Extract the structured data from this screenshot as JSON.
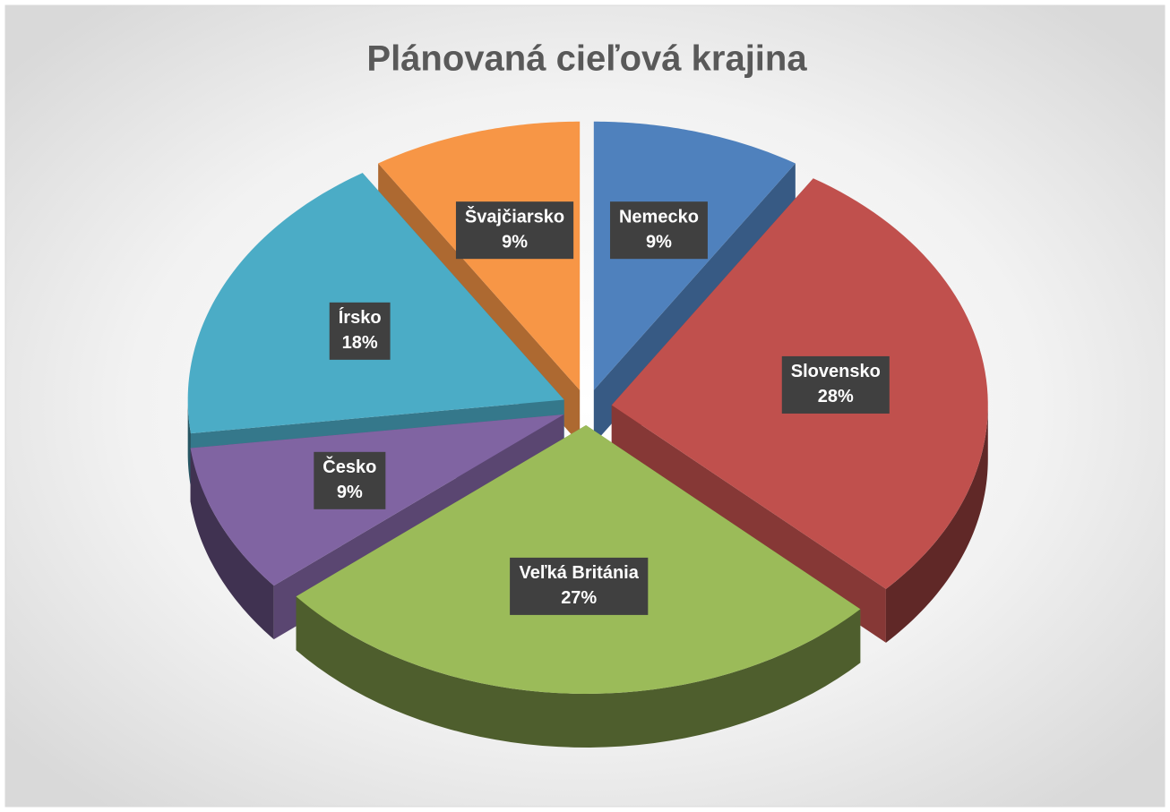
{
  "chart_data": {
    "type": "pie3d",
    "title": "Plánovaná cieľová krajina",
    "categories": [
      "Nemecko",
      "Slovensko",
      "Veľká Británia",
      "Česko",
      "Írsko",
      "Švajčiarsko"
    ],
    "values": [
      9,
      28,
      27,
      9,
      18,
      9
    ],
    "value_labels": [
      "9%",
      "28%",
      "27%",
      "9%",
      "18%",
      "9%"
    ],
    "colors": [
      "#4f81bd",
      "#c0504d",
      "#9bbb59",
      "#8064a2",
      "#4bacc6",
      "#f79646"
    ]
  }
}
